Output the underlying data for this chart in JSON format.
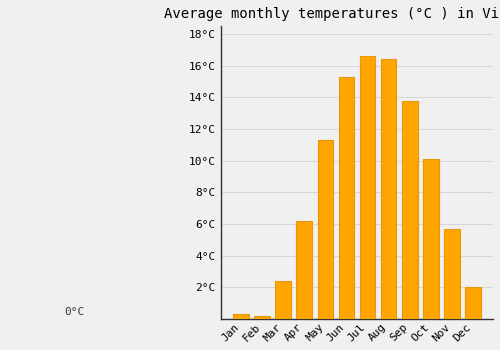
{
  "title": "Average monthly temperatures (°C ) in Vipperød",
  "months": [
    "Jan",
    "Feb",
    "Mar",
    "Apr",
    "May",
    "Jun",
    "Jul",
    "Aug",
    "Sep",
    "Oct",
    "Nov",
    "Dec"
  ],
  "values": [
    0.3,
    0.2,
    2.4,
    6.2,
    11.3,
    15.3,
    16.6,
    16.4,
    13.8,
    10.1,
    5.7,
    2.0
  ],
  "bar_color": "#FFA500",
  "bar_edge_color": "#E8960A",
  "background_color": "#F0F0F0",
  "grid_color": "#CCCCCC",
  "spine_color": "#333333",
  "ylim": [
    0,
    18.5
  ],
  "yticks": [
    2,
    4,
    6,
    8,
    10,
    12,
    14,
    16,
    18
  ],
  "title_fontsize": 10,
  "tick_fontsize": 8,
  "font_family": "monospace"
}
